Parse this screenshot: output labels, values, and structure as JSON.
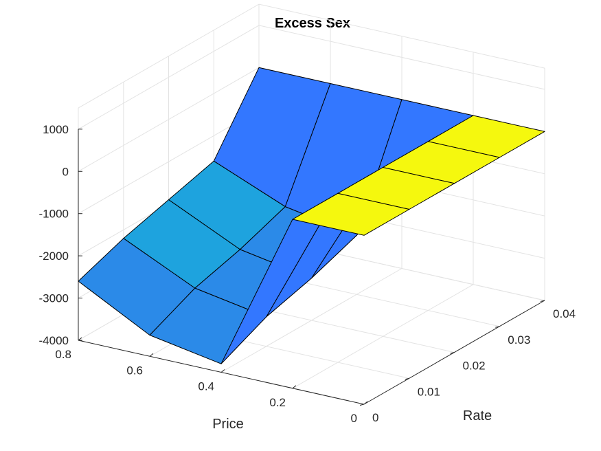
{
  "chart_data": {
    "type": "surface",
    "title": "Excess Sex",
    "xlabel": "Rate",
    "ylabel": "Price",
    "zlabel": "",
    "x": [
      0,
      0.01,
      0.02,
      0.03,
      0.04
    ],
    "y": [
      0,
      0.2,
      0.4,
      0.6,
      0.8
    ],
    "z": [
      [
        0,
        0,
        0,
        0,
        0
      ],
      [
        0,
        0,
        0,
        0,
        0
      ],
      [
        -3800,
        -3300,
        -3000,
        -2600,
        0
      ],
      [
        -3500,
        -3000,
        -2700,
        -2300,
        0
      ],
      [
        -2600,
        -2200,
        -1900,
        -1600,
        0
      ]
    ],
    "xlim": [
      0,
      0.04
    ],
    "ylim": [
      0,
      0.8
    ],
    "zlim": [
      -4000,
      1500
    ],
    "xticks": [
      "0",
      "0.01",
      "0.02",
      "0.03",
      "0.04"
    ],
    "yticks": [
      "0",
      "0.2",
      "0.4",
      "0.6",
      "0.8"
    ],
    "zticks": [
      "-4000",
      "-3000",
      "-2000",
      "-1000",
      "0",
      "1000"
    ],
    "grid": true,
    "colors": {
      "high": "#f5f80e",
      "mid_light": "#1ea3de",
      "mid": "#2b8ae8",
      "low": "#3377ff"
    }
  }
}
